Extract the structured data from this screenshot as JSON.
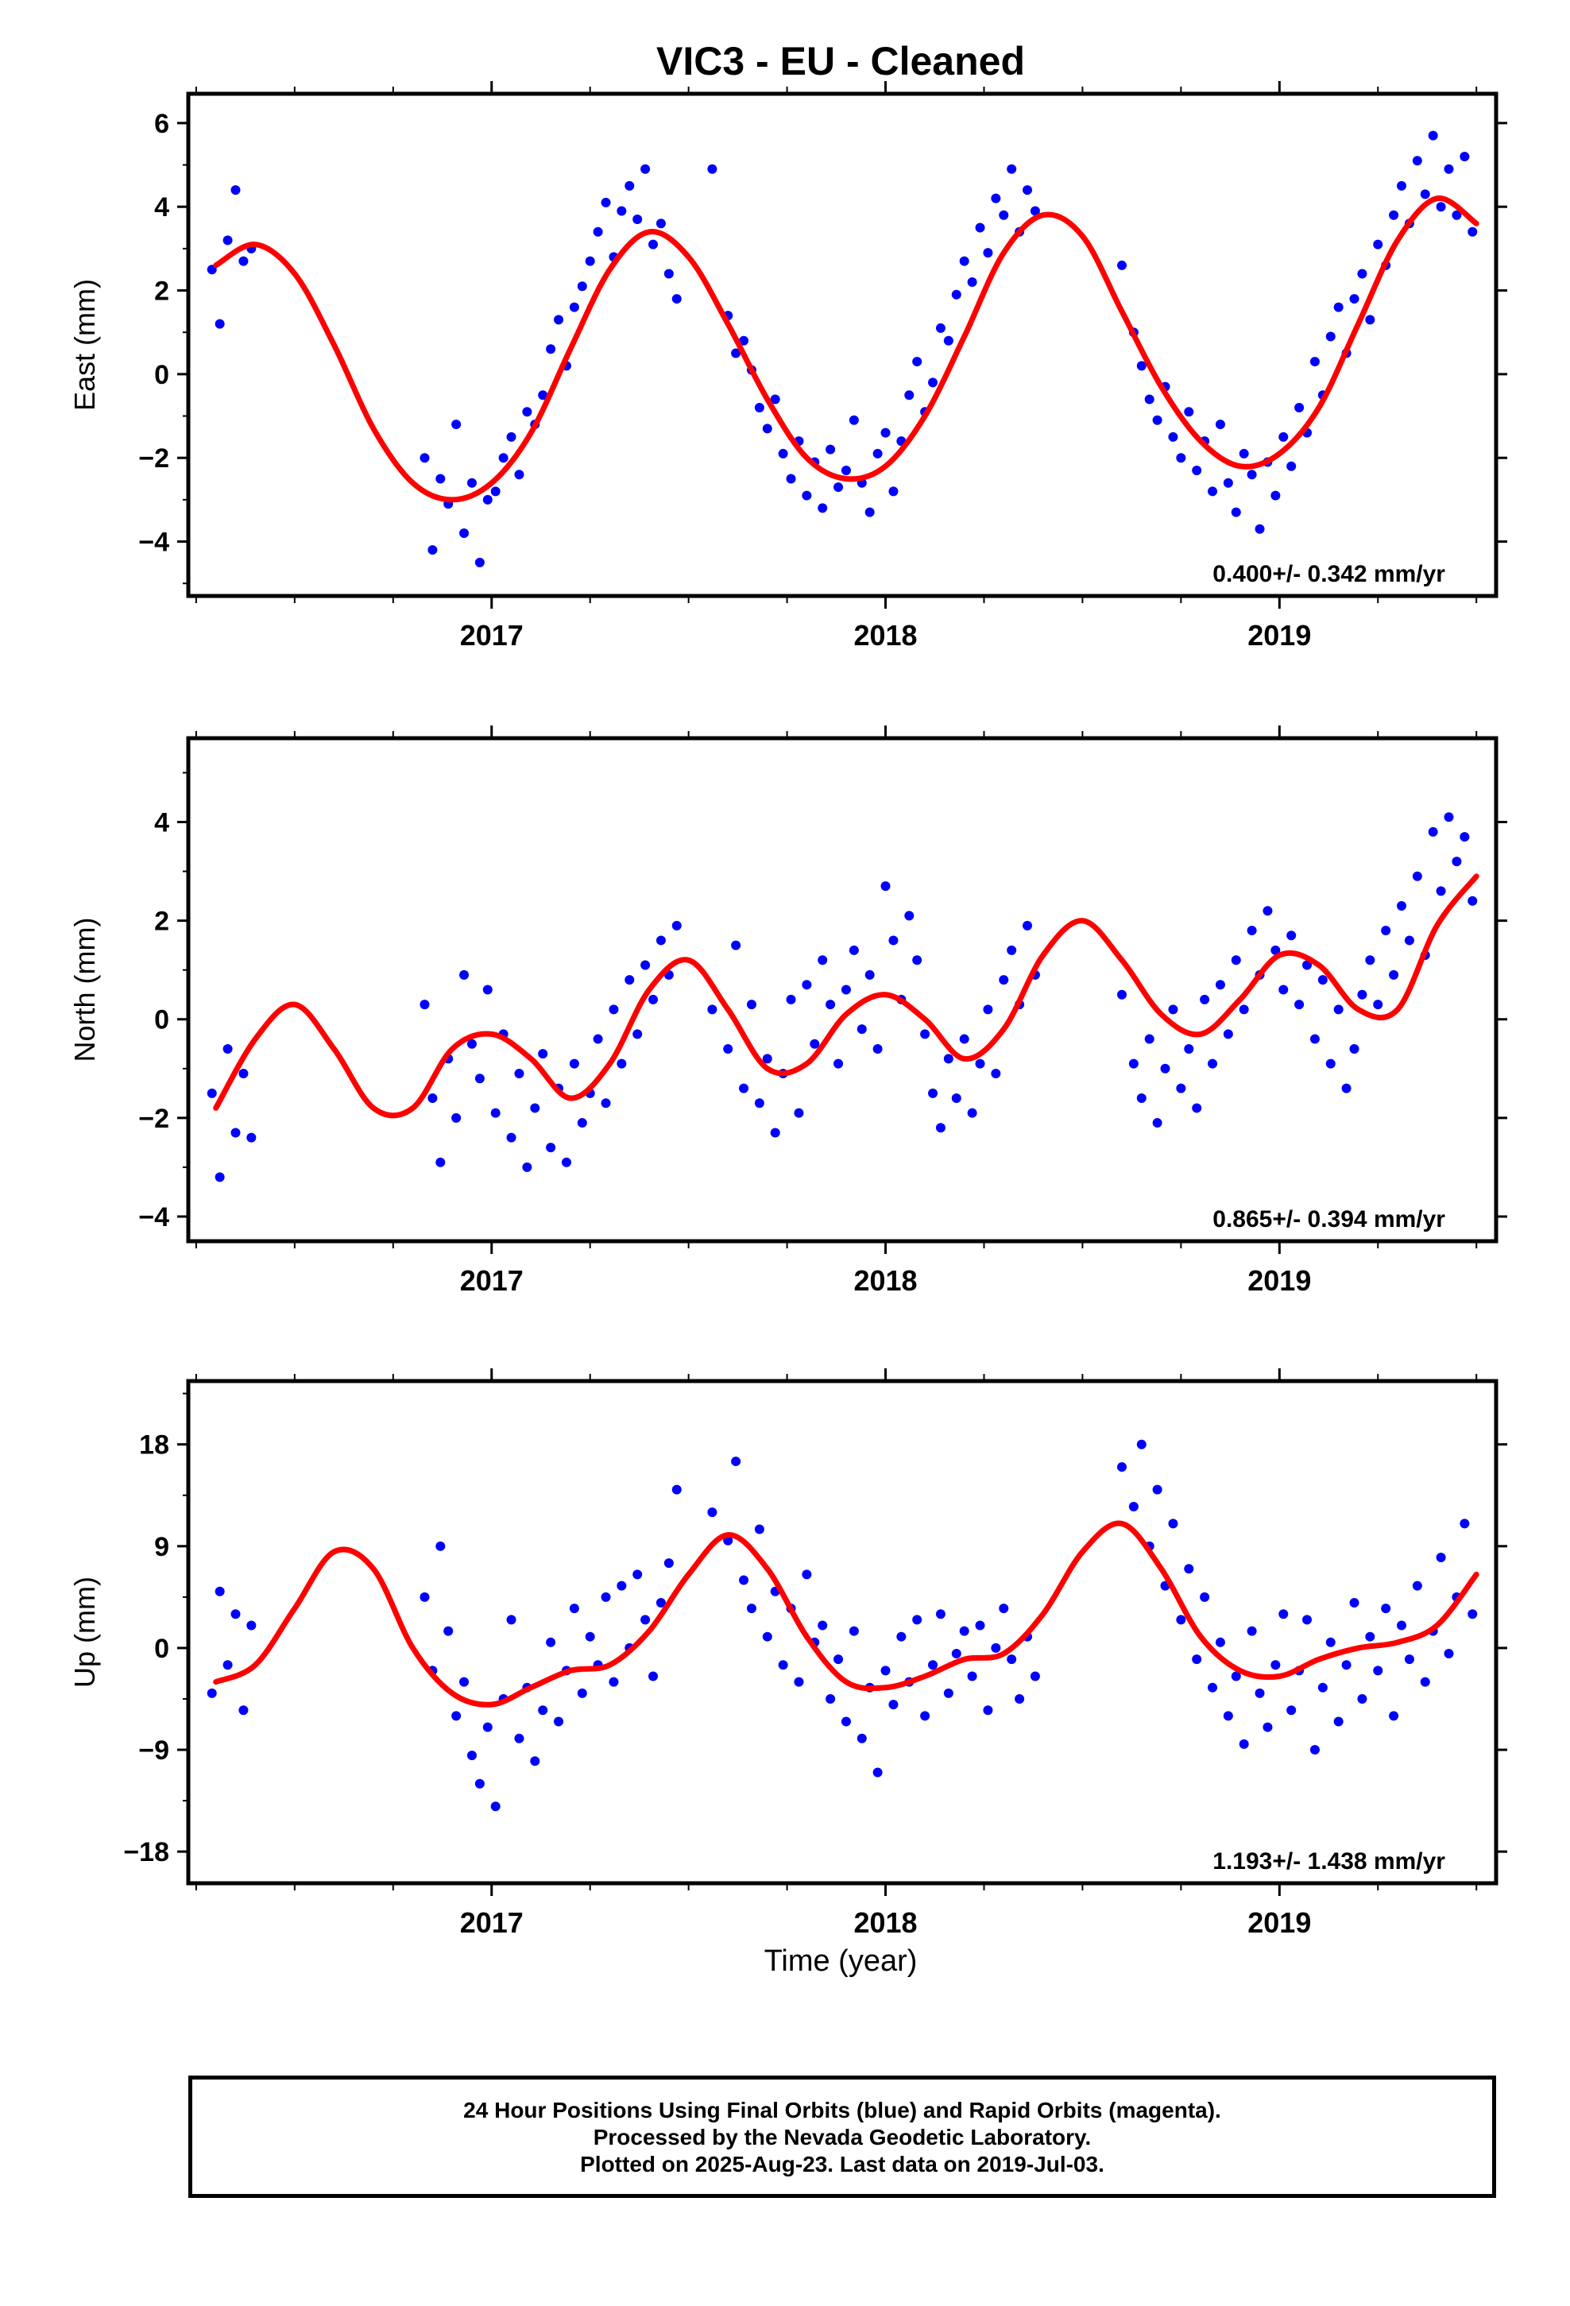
{
  "title": "VIC3  - EU - Cleaned",
  "xlabel": "Time (year)",
  "colors": {
    "points": "#0000ff",
    "fit": "#ff0000",
    "axes": "#000000"
  },
  "footer": {
    "line1": "24 Hour Positions Using Final Orbits (blue) and Rapid Orbits (magenta).",
    "line2": "Processed by the Nevada Geodetic Laboratory.",
    "line3": "Plotted on 2025-Aug-23. Last data on 2019-Jul-03."
  },
  "chart_data": [
    {
      "type": "scatter",
      "panel": "east",
      "ylabel": "East (mm)",
      "xlim": [
        2016.23,
        2019.55
      ],
      "ylim": [
        -5.3,
        6.7
      ],
      "yticks": [
        -4,
        -2,
        0,
        2,
        4,
        6
      ],
      "xticks": [
        2017,
        2018,
        2019
      ],
      "velocity_label": "0.400+/- 0.342 mm/yr",
      "fit": {
        "x": [
          2016.3,
          2016.4,
          2016.5,
          2016.6,
          2016.7,
          2016.8,
          2016.9,
          2017.0,
          2017.1,
          2017.2,
          2017.3,
          2017.4,
          2017.5,
          2017.6,
          2017.7,
          2017.8,
          2017.9,
          2018.0,
          2018.1,
          2018.2,
          2018.3,
          2018.4,
          2018.5,
          2018.6,
          2018.7,
          2018.8,
          2018.9,
          2019.0,
          2019.1,
          2019.2,
          2019.3,
          2019.4,
          2019.5
        ],
        "y": [
          2.6,
          3.1,
          2.4,
          0.7,
          -1.3,
          -2.6,
          -3.0,
          -2.6,
          -1.4,
          0.6,
          2.5,
          3.4,
          2.8,
          1.2,
          -0.6,
          -2.0,
          -2.5,
          -2.2,
          -1.0,
          0.9,
          2.9,
          3.8,
          3.3,
          1.5,
          -0.3,
          -1.6,
          -2.2,
          -1.9,
          -0.8,
          1.2,
          3.2,
          4.2,
          3.6
        ]
      },
      "points": {
        "x": [
          2016.29,
          2016.31,
          2016.33,
          2016.35,
          2016.37,
          2016.39,
          2016.83,
          2016.85,
          2016.87,
          2016.89,
          2016.91,
          2016.93,
          2016.95,
          2016.97,
          2016.99,
          2017.01,
          2017.03,
          2017.05,
          2017.07,
          2017.09,
          2017.11,
          2017.13,
          2017.15,
          2017.17,
          2017.19,
          2017.21,
          2017.23,
          2017.25,
          2017.27,
          2017.29,
          2017.31,
          2017.33,
          2017.35,
          2017.37,
          2017.39,
          2017.41,
          2017.43,
          2017.45,
          2017.47,
          2017.56,
          2017.6,
          2017.62,
          2017.64,
          2017.66,
          2017.68,
          2017.7,
          2017.72,
          2017.74,
          2017.76,
          2017.78,
          2017.8,
          2017.82,
          2017.84,
          2017.86,
          2017.88,
          2017.9,
          2017.92,
          2017.94,
          2017.96,
          2017.98,
          2018.0,
          2018.02,
          2018.04,
          2018.06,
          2018.08,
          2018.1,
          2018.12,
          2018.14,
          2018.16,
          2018.18,
          2018.2,
          2018.22,
          2018.24,
          2018.26,
          2018.28,
          2018.3,
          2018.32,
          2018.34,
          2018.36,
          2018.38,
          2018.6,
          2018.63,
          2018.65,
          2018.67,
          2018.69,
          2018.71,
          2018.73,
          2018.75,
          2018.77,
          2018.79,
          2018.81,
          2018.83,
          2018.85,
          2018.87,
          2018.89,
          2018.91,
          2018.93,
          2018.95,
          2018.97,
          2018.99,
          2019.01,
          2019.03,
          2019.05,
          2019.07,
          2019.09,
          2019.11,
          2019.13,
          2019.15,
          2019.17,
          2019.19,
          2019.21,
          2019.23,
          2019.25,
          2019.27,
          2019.29,
          2019.31,
          2019.33,
          2019.35,
          2019.37,
          2019.39,
          2019.41,
          2019.43,
          2019.45,
          2019.47,
          2019.49
        ],
        "y": [
          2.5,
          1.2,
          3.2,
          4.4,
          2.7,
          3.0,
          -2.0,
          -4.2,
          -2.5,
          -3.1,
          -1.2,
          -3.8,
          -2.6,
          -4.5,
          -3.0,
          -2.8,
          -2.0,
          -1.5,
          -2.4,
          -0.9,
          -1.2,
          -0.5,
          0.6,
          1.3,
          0.2,
          1.6,
          2.1,
          2.7,
          3.4,
          4.1,
          2.8,
          3.9,
          4.5,
          3.7,
          4.9,
          3.1,
          3.6,
          2.4,
          1.8,
          4.9,
          1.4,
          0.5,
          0.8,
          0.1,
          -0.8,
          -1.3,
          -0.6,
          -1.9,
          -2.5,
          -1.6,
          -2.9,
          -2.1,
          -3.2,
          -1.8,
          -2.7,
          -2.3,
          -1.1,
          -2.6,
          -3.3,
          -1.9,
          -1.4,
          -2.8,
          -1.6,
          -0.5,
          0.3,
          -0.9,
          -0.2,
          1.1,
          0.8,
          1.9,
          2.7,
          2.2,
          3.5,
          2.9,
          4.2,
          3.8,
          4.9,
          3.4,
          4.4,
          3.9,
          2.6,
          1.0,
          0.2,
          -0.6,
          -1.1,
          -0.3,
          -1.5,
          -2.0,
          -0.9,
          -2.3,
          -1.6,
          -2.8,
          -1.2,
          -2.6,
          -3.3,
          -1.9,
          -2.4,
          -3.7,
          -2.1,
          -2.9,
          -1.5,
          -2.2,
          -0.8,
          -1.4,
          0.3,
          -0.5,
          0.9,
          1.6,
          0.5,
          1.8,
          2.4,
          1.3,
          3.1,
          2.6,
          3.8,
          4.5,
          3.6,
          5.1,
          4.3,
          5.7,
          4.0,
          4.9,
          3.8,
          5.2,
          3.4
        ]
      }
    },
    {
      "type": "scatter",
      "panel": "north",
      "ylabel": "North (mm)",
      "xlim": [
        2016.23,
        2019.55
      ],
      "ylim": [
        -4.5,
        5.7
      ],
      "yticks": [
        -4,
        -2,
        0,
        2,
        4
      ],
      "xticks": [
        2017,
        2018,
        2019
      ],
      "velocity_label": "0.865+/- 0.394 mm/yr",
      "fit": {
        "x": [
          2016.3,
          2016.4,
          2016.5,
          2016.6,
          2016.7,
          2016.8,
          2016.9,
          2017.0,
          2017.1,
          2017.2,
          2017.3,
          2017.4,
          2017.5,
          2017.6,
          2017.7,
          2017.8,
          2017.9,
          2018.0,
          2018.1,
          2018.2,
          2018.3,
          2018.4,
          2018.5,
          2018.6,
          2018.7,
          2018.8,
          2018.9,
          2019.0,
          2019.1,
          2019.2,
          2019.3,
          2019.4,
          2019.5
        ],
        "y": [
          -1.8,
          -0.4,
          0.3,
          -0.6,
          -1.8,
          -1.8,
          -0.6,
          -0.3,
          -0.8,
          -1.6,
          -0.9,
          0.6,
          1.2,
          0.2,
          -1.0,
          -0.9,
          0.1,
          0.5,
          0.0,
          -0.8,
          -0.2,
          1.3,
          2.0,
          1.2,
          0.1,
          -0.3,
          0.4,
          1.3,
          1.1,
          0.2,
          0.2,
          1.9,
          2.9
        ]
      },
      "points": {
        "x": [
          2016.29,
          2016.31,
          2016.33,
          2016.35,
          2016.37,
          2016.39,
          2016.83,
          2016.85,
          2016.87,
          2016.89,
          2016.91,
          2016.93,
          2016.95,
          2016.97,
          2016.99,
          2017.01,
          2017.03,
          2017.05,
          2017.07,
          2017.09,
          2017.11,
          2017.13,
          2017.15,
          2017.17,
          2017.19,
          2017.21,
          2017.23,
          2017.25,
          2017.27,
          2017.29,
          2017.31,
          2017.33,
          2017.35,
          2017.37,
          2017.39,
          2017.41,
          2017.43,
          2017.45,
          2017.47,
          2017.56,
          2017.6,
          2017.62,
          2017.64,
          2017.66,
          2017.68,
          2017.7,
          2017.72,
          2017.74,
          2017.76,
          2017.78,
          2017.8,
          2017.82,
          2017.84,
          2017.86,
          2017.88,
          2017.9,
          2017.92,
          2017.94,
          2017.96,
          2017.98,
          2018.0,
          2018.02,
          2018.04,
          2018.06,
          2018.08,
          2018.1,
          2018.12,
          2018.14,
          2018.16,
          2018.18,
          2018.2,
          2018.22,
          2018.24,
          2018.26,
          2018.28,
          2018.3,
          2018.32,
          2018.34,
          2018.36,
          2018.38,
          2018.6,
          2018.63,
          2018.65,
          2018.67,
          2018.69,
          2018.71,
          2018.73,
          2018.75,
          2018.77,
          2018.79,
          2018.81,
          2018.83,
          2018.85,
          2018.87,
          2018.89,
          2018.91,
          2018.93,
          2018.95,
          2018.97,
          2018.99,
          2019.01,
          2019.03,
          2019.05,
          2019.07,
          2019.09,
          2019.11,
          2019.13,
          2019.15,
          2019.17,
          2019.19,
          2019.21,
          2019.23,
          2019.25,
          2019.27,
          2019.29,
          2019.31,
          2019.33,
          2019.35,
          2019.37,
          2019.39,
          2019.41,
          2019.43,
          2019.45,
          2019.47,
          2019.49
        ],
        "y": [
          -1.5,
          -3.2,
          -0.6,
          -2.3,
          -1.1,
          -2.4,
          0.3,
          -1.6,
          -2.9,
          -0.8,
          -2.0,
          0.9,
          -0.5,
          -1.2,
          0.6,
          -1.9,
          -0.3,
          -2.4,
          -1.1,
          -3.0,
          -1.8,
          -0.7,
          -2.6,
          -1.4,
          -2.9,
          -0.9,
          -2.1,
          -1.5,
          -0.4,
          -1.7,
          0.2,
          -0.9,
          0.8,
          -0.3,
          1.1,
          0.4,
          1.6,
          0.9,
          1.9,
          0.2,
          -0.6,
          1.5,
          -1.4,
          0.3,
          -1.7,
          -0.8,
          -2.3,
          -1.1,
          0.4,
          -1.9,
          0.7,
          -0.5,
          1.2,
          0.3,
          -0.9,
          0.6,
          1.4,
          -0.2,
          0.9,
          -0.6,
          2.7,
          1.6,
          0.4,
          2.1,
          1.2,
          -0.3,
          -1.5,
          -2.2,
          -0.8,
          -1.6,
          -0.4,
          -1.9,
          -0.9,
          0.2,
          -1.1,
          0.8,
          1.4,
          0.3,
          1.9,
          0.9,
          0.5,
          -0.9,
          -1.6,
          -0.4,
          -2.1,
          -1.0,
          0.2,
          -1.4,
          -0.6,
          -1.8,
          0.4,
          -0.9,
          0.7,
          -0.3,
          1.2,
          0.2,
          1.8,
          0.9,
          2.2,
          1.4,
          0.6,
          1.7,
          0.3,
          1.1,
          -0.4,
          0.8,
          -0.9,
          0.2,
          -1.4,
          -0.6,
          0.5,
          1.2,
          0.3,
          1.8,
          0.9,
          2.3,
          1.6,
          2.9,
          1.3,
          3.8,
          2.6,
          4.1,
          3.2,
          3.7,
          2.4
        ]
      }
    },
    {
      "type": "scatter",
      "panel": "up",
      "ylabel": "Up (mm)",
      "xlim": [
        2016.23,
        2019.55
      ],
      "ylim": [
        -20.8,
        23.6
      ],
      "yticks": [
        -18,
        -9,
        0,
        9,
        18
      ],
      "xticks": [
        2017,
        2018,
        2019
      ],
      "velocity_label": "1.193+/- 1.438 mm/yr",
      "fit": {
        "x": [
          2016.3,
          2016.4,
          2016.5,
          2016.6,
          2016.7,
          2016.8,
          2016.9,
          2017.0,
          2017.1,
          2017.2,
          2017.3,
          2017.4,
          2017.5,
          2017.6,
          2017.7,
          2017.8,
          2017.9,
          2018.0,
          2018.1,
          2018.2,
          2018.3,
          2018.4,
          2018.5,
          2018.6,
          2018.7,
          2018.8,
          2018.9,
          2019.0,
          2019.1,
          2019.2,
          2019.3,
          2019.4,
          2019.5
        ],
        "y": [
          -3.0,
          -1.5,
          3.5,
          8.5,
          7.0,
          0.0,
          -4.0,
          -5.0,
          -3.5,
          -2.0,
          -1.5,
          1.5,
          6.5,
          10.0,
          7.0,
          1.0,
          -3.0,
          -3.5,
          -2.5,
          -1.0,
          -0.5,
          3.0,
          8.5,
          11.0,
          7.0,
          1.0,
          -2.0,
          -2.5,
          -1.0,
          0.0,
          0.5,
          2.0,
          6.5
        ]
      },
      "points": {
        "x": [
          2016.29,
          2016.31,
          2016.33,
          2016.35,
          2016.37,
          2016.39,
          2016.83,
          2016.85,
          2016.87,
          2016.89,
          2016.91,
          2016.93,
          2016.95,
          2016.97,
          2016.99,
          2017.01,
          2017.03,
          2017.05,
          2017.07,
          2017.09,
          2017.11,
          2017.13,
          2017.15,
          2017.17,
          2017.19,
          2017.21,
          2017.23,
          2017.25,
          2017.27,
          2017.29,
          2017.31,
          2017.33,
          2017.35,
          2017.37,
          2017.39,
          2017.41,
          2017.43,
          2017.45,
          2017.47,
          2017.56,
          2017.6,
          2017.62,
          2017.64,
          2017.66,
          2017.68,
          2017.7,
          2017.72,
          2017.74,
          2017.76,
          2017.78,
          2017.8,
          2017.82,
          2017.84,
          2017.86,
          2017.88,
          2017.9,
          2017.92,
          2017.94,
          2017.96,
          2017.98,
          2018.0,
          2018.02,
          2018.04,
          2018.06,
          2018.08,
          2018.1,
          2018.12,
          2018.14,
          2018.16,
          2018.18,
          2018.2,
          2018.22,
          2018.24,
          2018.26,
          2018.28,
          2018.3,
          2018.32,
          2018.34,
          2018.36,
          2018.38,
          2018.6,
          2018.63,
          2018.65,
          2018.67,
          2018.69,
          2018.71,
          2018.73,
          2018.75,
          2018.77,
          2018.79,
          2018.81,
          2018.83,
          2018.85,
          2018.87,
          2018.89,
          2018.91,
          2018.93,
          2018.95,
          2018.97,
          2018.99,
          2019.01,
          2019.03,
          2019.05,
          2019.07,
          2019.09,
          2019.11,
          2019.13,
          2019.15,
          2019.17,
          2019.19,
          2019.21,
          2019.23,
          2019.25,
          2019.27,
          2019.29,
          2019.31,
          2019.33,
          2019.35,
          2019.37,
          2019.39,
          2019.41,
          2019.43,
          2019.45,
          2019.47,
          2019.49
        ],
        "y": [
          -4.0,
          5.0,
          -1.5,
          3.0,
          -5.5,
          2.0,
          4.5,
          -2.0,
          9.0,
          1.5,
          -6.0,
          -3.0,
          -9.5,
          -12.0,
          -7.0,
          -14.0,
          -4.5,
          2.5,
          -8.0,
          -3.5,
          -10.0,
          -5.5,
          0.5,
          -6.5,
          -2.0,
          3.5,
          -4.0,
          1.0,
          -1.5,
          4.5,
          -3.0,
          5.5,
          0.0,
          6.5,
          2.5,
          -2.5,
          4.0,
          7.5,
          14.0,
          12.0,
          9.5,
          16.5,
          6.0,
          3.5,
          10.5,
          1.0,
          5.0,
          -1.5,
          3.5,
          -3.0,
          6.5,
          0.5,
          2.0,
          -4.5,
          -1.0,
          -6.5,
          1.5,
          -8.0,
          -3.5,
          -11.0,
          -2.0,
          -5.0,
          1.0,
          -3.0,
          2.5,
          -6.0,
          -1.5,
          3.0,
          -4.0,
          -0.5,
          1.5,
          -2.5,
          2.0,
          -5.5,
          0.0,
          3.5,
          -1.0,
          -4.5,
          1.0,
          -2.5,
          16.0,
          12.5,
          18.0,
          9.0,
          14.0,
          5.5,
          11.0,
          2.5,
          7.0,
          -1.0,
          4.5,
          -3.5,
          0.5,
          -6.0,
          -2.5,
          -8.5,
          1.5,
          -4.0,
          -7.0,
          -1.5,
          3.0,
          -5.5,
          -2.0,
          2.5,
          -9.0,
          -3.5,
          0.5,
          -6.5,
          -1.5,
          4.0,
          -4.5,
          1.0,
          -2.0,
          3.5,
          -6.0,
          2.0,
          -1.0,
          5.5,
          -3.0,
          1.5,
          8.0,
          -0.5,
          4.5,
          11.0,
          3.0
        ]
      }
    }
  ]
}
